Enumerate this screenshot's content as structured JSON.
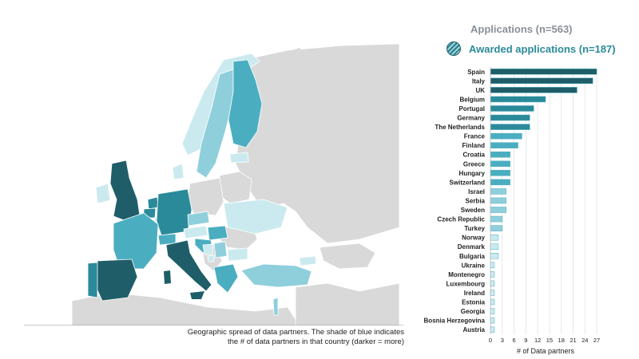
{
  "legend": {
    "applications": "Applications (n=563)",
    "awarded": "Awarded applications (n=187)",
    "awarded_icon": "striped-circle-icon"
  },
  "map": {
    "caption_line1": "Geographic spread of data partners. The shade of blue indicates",
    "caption_line2": "the # of data partners in that country (darker = more)",
    "colors": {
      "darkest": "#1f5e69",
      "dark": "#2a8a9a",
      "medium": "#4aaec0",
      "light": "#8fcfdc",
      "lightest": "#cbeaf0",
      "none": "#d9d9d9"
    }
  },
  "chart_data": {
    "type": "bar",
    "orientation": "horizontal",
    "categories": [
      "Spain",
      "Italy",
      "UK",
      "Belgium",
      "Portugal",
      "Germany",
      "The Netherlands",
      "France",
      "Finland",
      "Croatia",
      "Greece",
      "Hungary",
      "Switzerland",
      "Israel",
      "Serbia",
      "Sweden",
      "Czech Republic",
      "Turkey",
      "Norway",
      "Denmark",
      "Bulgaria",
      "Ukraine",
      "Montenegro",
      "Luxembourg",
      "Ireland",
      "Estonia",
      "Georgia",
      "Bosnia Herzegovina",
      "Austria"
    ],
    "values": [
      27,
      26,
      22,
      14,
      11,
      10,
      10,
      8,
      7,
      5,
      5,
      5,
      5,
      4,
      4,
      4,
      3,
      3,
      2,
      2,
      2,
      1,
      1,
      1,
      1,
      1,
      1,
      1,
      1
    ],
    "colors": [
      "#1f5e69",
      "#1f5e69",
      "#1f5e69",
      "#2a8a9a",
      "#2a8a9a",
      "#2a8a9a",
      "#2a8a9a",
      "#4aaec0",
      "#4aaec0",
      "#4aaec0",
      "#4aaec0",
      "#4aaec0",
      "#4aaec0",
      "#8fcfdc",
      "#8fcfdc",
      "#8fcfdc",
      "#8fcfdc",
      "#8fcfdc",
      "#cbeaf0",
      "#cbeaf0",
      "#cbeaf0",
      "#cbeaf0",
      "#cbeaf0",
      "#cbeaf0",
      "#cbeaf0",
      "#cbeaf0",
      "#cbeaf0",
      "#cbeaf0",
      "#cbeaf0"
    ],
    "xticks": [
      0,
      3,
      6,
      9,
      12,
      15,
      18,
      21,
      24,
      27
    ],
    "xlim": [
      0,
      28
    ],
    "xlabel": "# of Data partners",
    "grid": true
  }
}
